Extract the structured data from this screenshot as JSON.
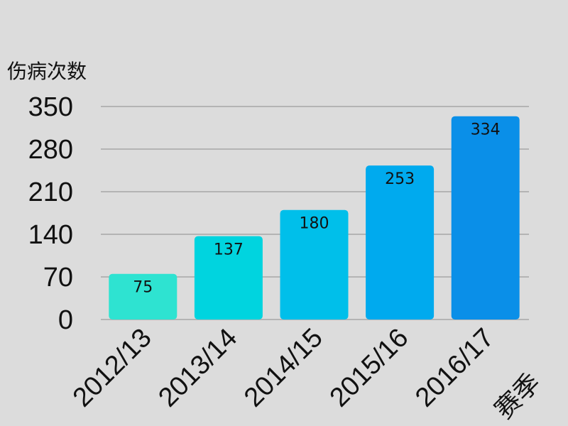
{
  "chart_data": {
    "type": "bar",
    "ylabel": "伤病次数",
    "xlabel": "赛季",
    "categories": [
      "2012/13",
      "2013/14",
      "2014/15",
      "2015/16",
      "2016/17"
    ],
    "values": [
      75,
      137,
      180,
      253,
      334
    ],
    "ylim": [
      0,
      350
    ],
    "yticks": [
      "0",
      "70",
      "140",
      "210",
      "280",
      "350"
    ],
    "grid": true,
    "bar_colors": [
      "#2ee3d1",
      "#00d4df",
      "#00bfea",
      "#00aaee",
      "#0a8fe8"
    ],
    "colors": {
      "background": "#dcdcdc",
      "grid": "#b4b4b4",
      "text": "#111111"
    }
  }
}
